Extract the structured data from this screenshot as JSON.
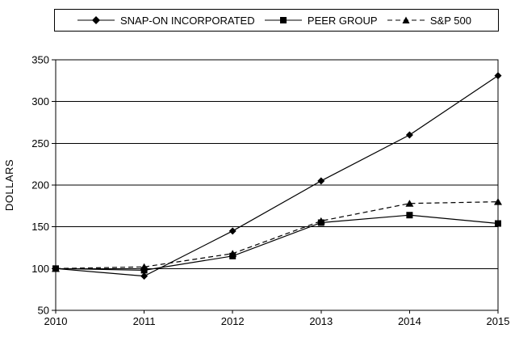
{
  "ylabel": "DOLLARS",
  "chart_data": {
    "type": "line",
    "title": "",
    "xlabel": "",
    "ylabel": "DOLLARS",
    "categories": [
      "2010",
      "2011",
      "2012",
      "2013",
      "2014",
      "2015"
    ],
    "series": [
      {
        "name": "SNAP-ON INCORPORATED",
        "marker": "diamond",
        "line": "solid",
        "values": [
          100,
          91,
          145,
          205,
          260,
          331
        ]
      },
      {
        "name": "PEER GROUP",
        "marker": "square",
        "line": "solid",
        "values": [
          100,
          98,
          115,
          155,
          164,
          154
        ]
      },
      {
        "name": "S&P 500",
        "marker": "triangle",
        "line": "dashed",
        "values": [
          100,
          102,
          118,
          157,
          178,
          180
        ]
      }
    ],
    "ylim": [
      50,
      350
    ],
    "yticks": [
      50,
      100,
      150,
      200,
      250,
      300,
      350
    ],
    "grid": "horizontal",
    "legend_position": "top",
    "colors": {
      "line": "#000000",
      "background": "#ffffff",
      "text": "#000000"
    }
  }
}
